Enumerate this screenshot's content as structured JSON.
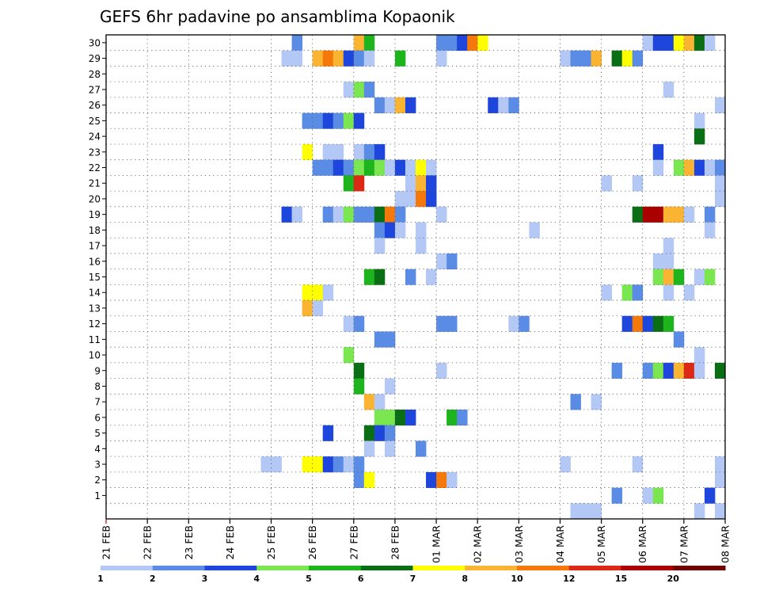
{
  "chart_data": {
    "type": "heatmap",
    "title": "GEFS 6hr padavine po ansamblima Kopaonik",
    "members": [
      1,
      2,
      3,
      4,
      5,
      6,
      7,
      8,
      9,
      10,
      11,
      12,
      13,
      14,
      15,
      16,
      17,
      18,
      19,
      20,
      21,
      22,
      23,
      24,
      25,
      26,
      27,
      28,
      29,
      30
    ],
    "date_ticks": [
      "21 FEB",
      "22 FEB",
      "23 FEB",
      "24 FEB",
      "25 FEB",
      "26 FEB",
      "27 FEB",
      "28 FEB",
      "01 MAR",
      "02 MAR",
      "03 MAR",
      "04 MAR",
      "05 MAR",
      "06 MAR",
      "07 MAR",
      "08 MAR"
    ],
    "steps_per_day": 4,
    "levels": [
      1,
      2,
      3,
      4,
      5,
      6,
      7,
      8,
      10,
      12,
      15,
      20
    ],
    "level_labels": [
      "1",
      "2",
      "3",
      "4",
      "5",
      "6",
      "7",
      "8",
      "10",
      "12",
      "15",
      "20"
    ],
    "colors": [
      "#b4c8f5",
      "#5a8ce6",
      "#1e46dc",
      "#7ae650",
      "#1eb41e",
      "#0a6e14",
      "#ffff00",
      "#fab432",
      "#f5780a",
      "#dc2814",
      "#aa0000",
      "#6e0000"
    ],
    "cells": [
      {
        "member": 30,
        "step": 18,
        "level": 2
      },
      {
        "member": 30,
        "step": 24,
        "level": 8
      },
      {
        "member": 30,
        "step": 25,
        "level": 5
      },
      {
        "member": 30,
        "step": 32,
        "level": 2
      },
      {
        "member": 30,
        "step": 33,
        "level": 2
      },
      {
        "member": 30,
        "step": 34,
        "level": 3
      },
      {
        "member": 30,
        "step": 35,
        "level": 9
      },
      {
        "member": 30,
        "step": 36,
        "level": 7
      },
      {
        "member": 30,
        "step": 52,
        "level": 1
      },
      {
        "member": 30,
        "step": 53,
        "level": 3
      },
      {
        "member": 30,
        "step": 54,
        "level": 3
      },
      {
        "member": 30,
        "step": 55,
        "level": 7
      },
      {
        "member": 30,
        "step": 56,
        "level": 8
      },
      {
        "member": 30,
        "step": 57,
        "level": 6
      },
      {
        "member": 30,
        "step": 58,
        "level": 1
      },
      {
        "member": 29,
        "step": 17,
        "level": 1
      },
      {
        "member": 29,
        "step": 18,
        "level": 1
      },
      {
        "member": 29,
        "step": 20,
        "level": 8
      },
      {
        "member": 29,
        "step": 21,
        "level": 9
      },
      {
        "member": 29,
        "step": 22,
        "level": 8
      },
      {
        "member": 29,
        "step": 23,
        "level": 3
      },
      {
        "member": 29,
        "step": 24,
        "level": 2
      },
      {
        "member": 29,
        "step": 25,
        "level": 1
      },
      {
        "member": 29,
        "step": 28,
        "level": 5
      },
      {
        "member": 29,
        "step": 32,
        "level": 1
      },
      {
        "member": 29,
        "step": 44,
        "level": 1
      },
      {
        "member": 29,
        "step": 45,
        "level": 2
      },
      {
        "member": 29,
        "step": 46,
        "level": 2
      },
      {
        "member": 29,
        "step": 47,
        "level": 8
      },
      {
        "member": 29,
        "step": 49,
        "level": 6
      },
      {
        "member": 29,
        "step": 50,
        "level": 7
      },
      {
        "member": 29,
        "step": 51,
        "level": 2
      },
      {
        "member": 27,
        "step": 23,
        "level": 1
      },
      {
        "member": 27,
        "step": 24,
        "level": 4
      },
      {
        "member": 27,
        "step": 25,
        "level": 2
      },
      {
        "member": 27,
        "step": 54,
        "level": 1
      },
      {
        "member": 26,
        "step": 26,
        "level": 2
      },
      {
        "member": 26,
        "step": 27,
        "level": 1
      },
      {
        "member": 26,
        "step": 28,
        "level": 8
      },
      {
        "member": 26,
        "step": 29,
        "level": 3
      },
      {
        "member": 26,
        "step": 37,
        "level": 3
      },
      {
        "member": 26,
        "step": 38,
        "level": 1
      },
      {
        "member": 26,
        "step": 39,
        "level": 2
      },
      {
        "member": 26,
        "step": 59,
        "level": 1
      },
      {
        "member": 25,
        "step": 19,
        "level": 2
      },
      {
        "member": 25,
        "step": 20,
        "level": 2
      },
      {
        "member": 25,
        "step": 21,
        "level": 3
      },
      {
        "member": 25,
        "step": 22,
        "level": 2
      },
      {
        "member": 25,
        "step": 23,
        "level": 4
      },
      {
        "member": 25,
        "step": 24,
        "level": 3
      },
      {
        "member": 25,
        "step": 57,
        "level": 1
      },
      {
        "member": 24,
        "step": 57,
        "level": 6
      },
      {
        "member": 23,
        "step": 19,
        "level": 7
      },
      {
        "member": 23,
        "step": 21,
        "level": 1
      },
      {
        "member": 23,
        "step": 22,
        "level": 1
      },
      {
        "member": 23,
        "step": 24,
        "level": 1
      },
      {
        "member": 23,
        "step": 25,
        "level": 2
      },
      {
        "member": 23,
        "step": 26,
        "level": 3
      },
      {
        "member": 23,
        "step": 53,
        "level": 3
      },
      {
        "member": 22,
        "step": 20,
        "level": 2
      },
      {
        "member": 22,
        "step": 21,
        "level": 2
      },
      {
        "member": 22,
        "step": 22,
        "level": 3
      },
      {
        "member": 22,
        "step": 23,
        "level": 2
      },
      {
        "member": 22,
        "step": 24,
        "level": 4
      },
      {
        "member": 22,
        "step": 25,
        "level": 5
      },
      {
        "member": 22,
        "step": 26,
        "level": 4
      },
      {
        "member": 22,
        "step": 27,
        "level": 1
      },
      {
        "member": 22,
        "step": 28,
        "level": 3
      },
      {
        "member": 22,
        "step": 29,
        "level": 1
      },
      {
        "member": 22,
        "step": 30,
        "level": 7
      },
      {
        "member": 22,
        "step": 31,
        "level": 1
      },
      {
        "member": 22,
        "step": 53,
        "level": 1
      },
      {
        "member": 22,
        "step": 55,
        "level": 4
      },
      {
        "member": 22,
        "step": 56,
        "level": 8
      },
      {
        "member": 22,
        "step": 57,
        "level": 3
      },
      {
        "member": 22,
        "step": 58,
        "level": 1
      },
      {
        "member": 22,
        "step": 59,
        "level": 2
      },
      {
        "member": 21,
        "step": 23,
        "level": 5
      },
      {
        "member": 21,
        "step": 24,
        "level": 10
      },
      {
        "member": 21,
        "step": 29,
        "level": 1
      },
      {
        "member": 21,
        "step": 30,
        "level": 8
      },
      {
        "member": 21,
        "step": 31,
        "level": 3
      },
      {
        "member": 21,
        "step": 48,
        "level": 1
      },
      {
        "member": 21,
        "step": 51,
        "level": 1
      },
      {
        "member": 21,
        "step": 59,
        "level": 1
      },
      {
        "member": 20,
        "step": 28,
        "level": 1
      },
      {
        "member": 20,
        "step": 29,
        "level": 1
      },
      {
        "member": 20,
        "step": 30,
        "level": 9
      },
      {
        "member": 20,
        "step": 31,
        "level": 3
      },
      {
        "member": 20,
        "step": 59,
        "level": 1
      },
      {
        "member": 19,
        "step": 17,
        "level": 3
      },
      {
        "member": 19,
        "step": 18,
        "level": 1
      },
      {
        "member": 19,
        "step": 21,
        "level": 2
      },
      {
        "member": 19,
        "step": 22,
        "level": 1
      },
      {
        "member": 19,
        "step": 23,
        "level": 4
      },
      {
        "member": 19,
        "step": 24,
        "level": 2
      },
      {
        "member": 19,
        "step": 25,
        "level": 2
      },
      {
        "member": 19,
        "step": 26,
        "level": 6
      },
      {
        "member": 19,
        "step": 27,
        "level": 9
      },
      {
        "member": 19,
        "step": 28,
        "level": 2
      },
      {
        "member": 19,
        "step": 32,
        "level": 1
      },
      {
        "member": 19,
        "step": 51,
        "level": 6
      },
      {
        "member": 19,
        "step": 52,
        "level": 11
      },
      {
        "member": 19,
        "step": 53,
        "level": 11
      },
      {
        "member": 19,
        "step": 54,
        "level": 8
      },
      {
        "member": 19,
        "step": 55,
        "level": 8
      },
      {
        "member": 19,
        "step": 56,
        "level": 1
      },
      {
        "member": 19,
        "step": 58,
        "level": 2
      },
      {
        "member": 18,
        "step": 26,
        "level": 2
      },
      {
        "member": 18,
        "step": 27,
        "level": 3
      },
      {
        "member": 18,
        "step": 28,
        "level": 1
      },
      {
        "member": 18,
        "step": 30,
        "level": 1
      },
      {
        "member": 18,
        "step": 41,
        "level": 1
      },
      {
        "member": 18,
        "step": 58,
        "level": 1
      },
      {
        "member": 17,
        "step": 26,
        "level": 1
      },
      {
        "member": 17,
        "step": 30,
        "level": 1
      },
      {
        "member": 17,
        "step": 54,
        "level": 1
      },
      {
        "member": 16,
        "step": 32,
        "level": 1
      },
      {
        "member": 16,
        "step": 33,
        "level": 2
      },
      {
        "member": 16,
        "step": 53,
        "level": 1
      },
      {
        "member": 16,
        "step": 54,
        "level": 1
      },
      {
        "member": 15,
        "step": 25,
        "level": 5
      },
      {
        "member": 15,
        "step": 26,
        "level": 6
      },
      {
        "member": 15,
        "step": 29,
        "level": 2
      },
      {
        "member": 15,
        "step": 31,
        "level": 1
      },
      {
        "member": 15,
        "step": 53,
        "level": 4
      },
      {
        "member": 15,
        "step": 54,
        "level": 8
      },
      {
        "member": 15,
        "step": 55,
        "level": 5
      },
      {
        "member": 15,
        "step": 57,
        "level": 1
      },
      {
        "member": 15,
        "step": 58,
        "level": 4
      },
      {
        "member": 14,
        "step": 19,
        "level": 7
      },
      {
        "member": 14,
        "step": 20,
        "level": 7
      },
      {
        "member": 14,
        "step": 21,
        "level": 1
      },
      {
        "member": 14,
        "step": 48,
        "level": 1
      },
      {
        "member": 14,
        "step": 50,
        "level": 4
      },
      {
        "member": 14,
        "step": 51,
        "level": 2
      },
      {
        "member": 14,
        "step": 54,
        "level": 1
      },
      {
        "member": 14,
        "step": 56,
        "level": 1
      },
      {
        "member": 13,
        "step": 19,
        "level": 8
      },
      {
        "member": 13,
        "step": 20,
        "level": 1
      },
      {
        "member": 12,
        "step": 23,
        "level": 1
      },
      {
        "member": 12,
        "step": 24,
        "level": 2
      },
      {
        "member": 12,
        "step": 32,
        "level": 2
      },
      {
        "member": 12,
        "step": 33,
        "level": 2
      },
      {
        "member": 12,
        "step": 39,
        "level": 1
      },
      {
        "member": 12,
        "step": 40,
        "level": 2
      },
      {
        "member": 12,
        "step": 50,
        "level": 3
      },
      {
        "member": 12,
        "step": 51,
        "level": 9
      },
      {
        "member": 12,
        "step": 52,
        "level": 3
      },
      {
        "member": 12,
        "step": 53,
        "level": 6
      },
      {
        "member": 12,
        "step": 54,
        "level": 5
      },
      {
        "member": 11,
        "step": 26,
        "level": 2
      },
      {
        "member": 11,
        "step": 27,
        "level": 2
      },
      {
        "member": 11,
        "step": 55,
        "level": 2
      },
      {
        "member": 10,
        "step": 23,
        "level": 4
      },
      {
        "member": 10,
        "step": 57,
        "level": 1
      },
      {
        "member": 9,
        "step": 24,
        "level": 6
      },
      {
        "member": 9,
        "step": 32,
        "level": 1
      },
      {
        "member": 9,
        "step": 49,
        "level": 2
      },
      {
        "member": 9,
        "step": 52,
        "level": 2
      },
      {
        "member": 9,
        "step": 53,
        "level": 4
      },
      {
        "member": 9,
        "step": 54,
        "level": 3
      },
      {
        "member": 9,
        "step": 55,
        "level": 8
      },
      {
        "member": 9,
        "step": 56,
        "level": 10
      },
      {
        "member": 9,
        "step": 57,
        "level": 1
      },
      {
        "member": 9,
        "step": 59,
        "level": 6
      },
      {
        "member": 8,
        "step": 24,
        "level": 5
      },
      {
        "member": 8,
        "step": 27,
        "level": 1
      },
      {
        "member": 7,
        "step": 25,
        "level": 8
      },
      {
        "member": 7,
        "step": 26,
        "level": 1
      },
      {
        "member": 7,
        "step": 45,
        "level": 2
      },
      {
        "member": 7,
        "step": 47,
        "level": 1
      },
      {
        "member": 6,
        "step": 26,
        "level": 4
      },
      {
        "member": 6,
        "step": 27,
        "level": 4
      },
      {
        "member": 6,
        "step": 28,
        "level": 6
      },
      {
        "member": 6,
        "step": 29,
        "level": 3
      },
      {
        "member": 6,
        "step": 33,
        "level": 5
      },
      {
        "member": 6,
        "step": 34,
        "level": 2
      },
      {
        "member": 5,
        "step": 21,
        "level": 3
      },
      {
        "member": 5,
        "step": 25,
        "level": 6
      },
      {
        "member": 5,
        "step": 26,
        "level": 3
      },
      {
        "member": 5,
        "step": 27,
        "level": 2
      },
      {
        "member": 4,
        "step": 25,
        "level": 1
      },
      {
        "member": 4,
        "step": 27,
        "level": 1
      },
      {
        "member": 4,
        "step": 30,
        "level": 2
      },
      {
        "member": 3,
        "step": 15,
        "level": 1
      },
      {
        "member": 3,
        "step": 16,
        "level": 1
      },
      {
        "member": 3,
        "step": 19,
        "level": 7
      },
      {
        "member": 3,
        "step": 20,
        "level": 7
      },
      {
        "member": 3,
        "step": 21,
        "level": 3
      },
      {
        "member": 3,
        "step": 22,
        "level": 2
      },
      {
        "member": 3,
        "step": 23,
        "level": 1
      },
      {
        "member": 3,
        "step": 24,
        "level": 2
      },
      {
        "member": 3,
        "step": 44,
        "level": 1
      },
      {
        "member": 3,
        "step": 51,
        "level": 1
      },
      {
        "member": 3,
        "step": 59,
        "level": 1
      },
      {
        "member": 2,
        "step": 24,
        "level": 2
      },
      {
        "member": 2,
        "step": 25,
        "level": 7
      },
      {
        "member": 2,
        "step": 31,
        "level": 3
      },
      {
        "member": 2,
        "step": 32,
        "level": 9
      },
      {
        "member": 2,
        "step": 33,
        "level": 1
      },
      {
        "member": 2,
        "step": 59,
        "level": 1
      },
      {
        "member": 1,
        "step": 49,
        "level": 2
      },
      {
        "member": 1,
        "step": 52,
        "level": 1
      },
      {
        "member": 1,
        "step": 53,
        "level": 4
      },
      {
        "member": 1,
        "step": 58,
        "level": 3
      },
      {
        "member": 0,
        "step": 45,
        "level": 1
      },
      {
        "member": 0,
        "step": 46,
        "level": 1
      },
      {
        "member": 0,
        "step": 47,
        "level": 1
      },
      {
        "member": 0,
        "step": 57,
        "level": 1
      },
      {
        "member": 0,
        "step": 59,
        "level": 1
      }
    ]
  }
}
